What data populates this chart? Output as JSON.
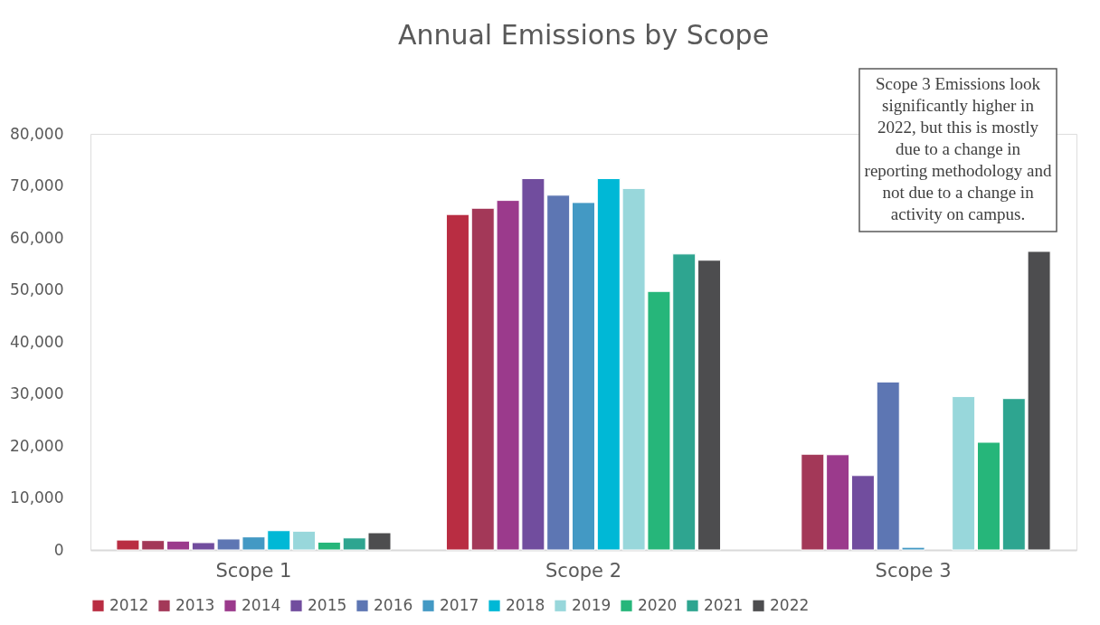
{
  "chart_data": {
    "type": "bar",
    "title": "Annual Emissions by Scope",
    "categories": [
      "Scope 1",
      "Scope 2",
      "Scope 3"
    ],
    "series": [
      {
        "name": "2012",
        "color": "#b92d42",
        "values": [
          1900,
          64500,
          null
        ]
      },
      {
        "name": "2013",
        "color": "#a33858",
        "values": [
          1800,
          65700,
          18400
        ]
      },
      {
        "name": "2014",
        "color": "#9b3a8c",
        "values": [
          1700,
          67200,
          18300
        ]
      },
      {
        "name": "2015",
        "color": "#714d9e",
        "values": [
          1400,
          71400,
          14300
        ]
      },
      {
        "name": "2016",
        "color": "#5d76b3",
        "values": [
          2100,
          68200,
          32300
        ]
      },
      {
        "name": "2017",
        "color": "#4399c4",
        "values": [
          2500,
          66800,
          500
        ]
      },
      {
        "name": "2018",
        "color": "#00b8d6",
        "values": [
          3700,
          71400,
          null
        ]
      },
      {
        "name": "2019",
        "color": "#98d7db",
        "values": [
          3600,
          69500,
          29500
        ]
      },
      {
        "name": "2020",
        "color": "#26b67a",
        "values": [
          1500,
          49700,
          20700
        ]
      },
      {
        "name": "2021",
        "color": "#2ea590",
        "values": [
          2300,
          56900,
          29100
        ]
      },
      {
        "name": "2022",
        "color": "#4d4d4f",
        "values": [
          3300,
          55700,
          57400
        ]
      }
    ],
    "ylim": [
      0,
      80000
    ],
    "yticks": [
      0,
      {
        "value": 10000,
        "label": "10,000"
      },
      {
        "value": 20000,
        "label": "20,000"
      },
      {
        "value": 30000,
        "label": "30,000"
      },
      {
        "value": 40000,
        "label": "40,000"
      },
      {
        "value": 50000,
        "label": "50,000"
      },
      {
        "value": 60000,
        "label": "60,000"
      },
      {
        "value": 70000,
        "label": "70,000"
      },
      {
        "value": 80000,
        "label": "80,000"
      }
    ],
    "grid": false,
    "legend": "bottom",
    "annotations": [
      "Scope 3 Emissions look significantly higher in 2022, but this is mostly due to a change in reporting methodology and not due to a change in activity on campus."
    ]
  }
}
